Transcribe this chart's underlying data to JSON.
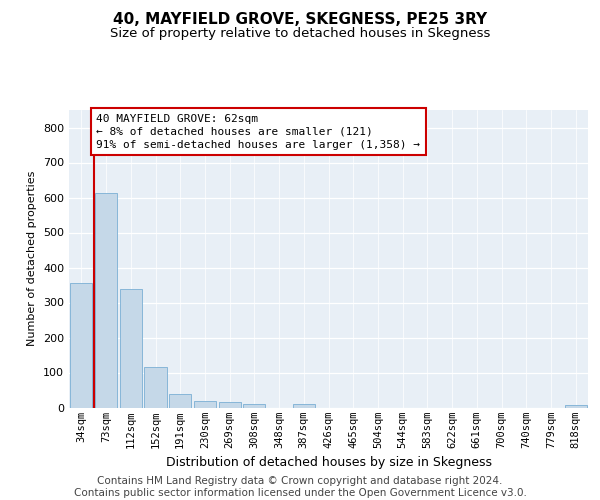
{
  "title": "40, MAYFIELD GROVE, SKEGNESS, PE25 3RY",
  "subtitle": "Size of property relative to detached houses in Skegness",
  "xlabel": "Distribution of detached houses by size in Skegness",
  "ylabel": "Number of detached properties",
  "bar_color": "#c5d8e8",
  "bar_edge_color": "#7aafd4",
  "background_color": "#e8eff6",
  "grid_color": "#ffffff",
  "annotation_line_color": "#cc0000",
  "annotation_box_color": "#cc0000",
  "annotation_text": "40 MAYFIELD GROVE: 62sqm\n← 8% of detached houses are smaller (121)\n91% of semi-detached houses are larger (1,358) →",
  "property_line_x": 0.5,
  "categories": [
    "34sqm",
    "73sqm",
    "112sqm",
    "152sqm",
    "191sqm",
    "230sqm",
    "269sqm",
    "308sqm",
    "348sqm",
    "387sqm",
    "426sqm",
    "465sqm",
    "504sqm",
    "544sqm",
    "583sqm",
    "622sqm",
    "661sqm",
    "700sqm",
    "740sqm",
    "779sqm",
    "818sqm"
  ],
  "values": [
    357,
    612,
    338,
    115,
    38,
    20,
    17,
    11,
    0,
    10,
    0,
    0,
    0,
    0,
    0,
    0,
    0,
    0,
    0,
    0,
    8
  ],
  "ylim": [
    0,
    850
  ],
  "yticks": [
    0,
    100,
    200,
    300,
    400,
    500,
    600,
    700,
    800
  ],
  "footer": "Contains HM Land Registry data © Crown copyright and database right 2024.\nContains public sector information licensed under the Open Government Licence v3.0.",
  "title_fontsize": 11,
  "subtitle_fontsize": 9.5,
  "footer_fontsize": 7.5,
  "ylabel_fontsize": 8,
  "xlabel_fontsize": 9,
  "tick_fontsize": 7.5,
  "ytick_fontsize": 8
}
